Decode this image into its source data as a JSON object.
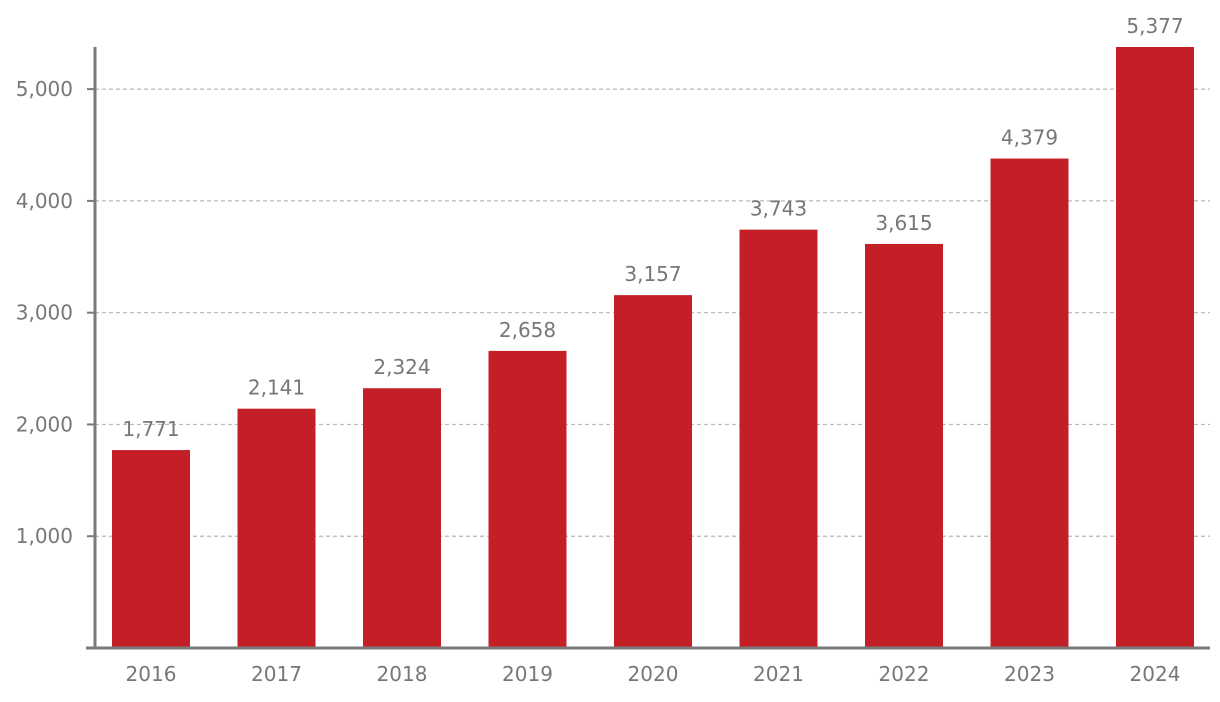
{
  "chart_data": {
    "type": "bar",
    "categories": [
      "2016",
      "2017",
      "2018",
      "2019",
      "2020",
      "2021",
      "2022",
      "2023",
      "2024"
    ],
    "values": [
      1771,
      2141,
      2324,
      2658,
      3157,
      3743,
      3615,
      4379,
      5377
    ],
    "value_labels": [
      "1,771",
      "2,141",
      "2,324",
      "2,658",
      "3,157",
      "3,743",
      "3,615",
      "4,379",
      "5,377"
    ],
    "title": "",
    "xlabel": "",
    "ylabel": "",
    "ylim": [
      0,
      5377
    ],
    "yticks": [
      1000,
      2000,
      3000,
      4000,
      5000
    ],
    "ytick_labels": [
      "1,000",
      "2,000",
      "3,000",
      "4,000",
      "5,000"
    ],
    "grid": true,
    "grid_style": "dashed",
    "legend": "none",
    "colors": {
      "bar": "#c41f27",
      "axis": "#7a7a7a",
      "grid": "#b8b8b8",
      "text": "#777777"
    }
  }
}
